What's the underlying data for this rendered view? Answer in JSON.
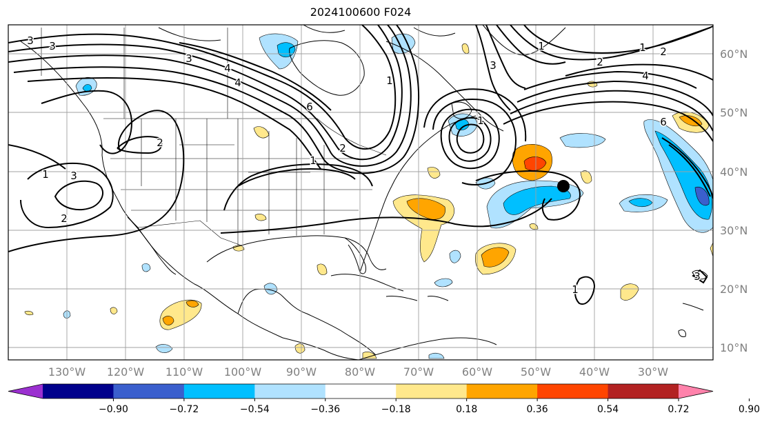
{
  "title": "2024100600 F024",
  "lon_labels": [
    "130°W",
    "120°W",
    "110°W",
    "100°W",
    "90°W",
    "80°W",
    "70°W",
    "60°W",
    "50°W",
    "40°W",
    "30°W"
  ],
  "lat_labels": [
    "60°N",
    "50°N",
    "40°N",
    "30°N",
    "20°N",
    "10°N"
  ],
  "colorbar": {
    "colors": [
      "#9b30d0",
      "#00008b",
      "#3a5fcd",
      "#00bfff",
      "#b0e2ff",
      "#ffffff",
      "#ffe88c",
      "#ffa500",
      "#ff4500",
      "#b22222",
      "#ff82ab"
    ],
    "ticks": [
      "−0.90",
      "−0.72",
      "−0.54",
      "−0.36",
      "−0.18",
      "0.18",
      "0.36",
      "0.54",
      "0.72",
      "0.90"
    ]
  },
  "contour_labels": [
    "3",
    "3",
    "3",
    "4",
    "4",
    "6",
    "1",
    "3",
    "1",
    "2",
    "4",
    "6",
    "1",
    "2",
    "1",
    "3",
    "2",
    "2",
    "1",
    "1",
    "3",
    "1",
    "2"
  ]
}
